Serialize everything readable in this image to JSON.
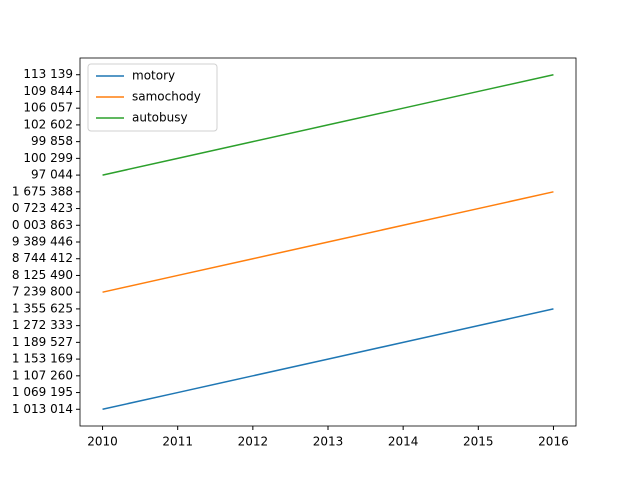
{
  "chart_data": {
    "type": "line",
    "x": [
      2010,
      2011,
      2012,
      2013,
      2014,
      2015,
      2016
    ],
    "xlim": [
      2009.7,
      2016.3
    ],
    "xticks": [
      2010,
      2011,
      2012,
      2013,
      2014,
      2015,
      2016
    ],
    "y_categories": [
      "1 013 014",
      "1 069 195",
      "1 107 260",
      "1 153 169",
      "1 189 527",
      "1 272 333",
      "1 355 625",
      "7 239 800",
      "8 125 490",
      "8 744 412",
      "9 389 446",
      "0 003 863",
      "0 723 423",
      "1 675 388",
      "97 044",
      "100 299",
      "99 858",
      "102 602",
      "106 057",
      "109 844",
      "113 139"
    ],
    "series": [
      {
        "name": "motory",
        "color": "#1f77b4",
        "values": [
          "1 013 014",
          "1 069 195",
          "1 107 260",
          "1 153 169",
          "1 189 527",
          "1 272 333",
          "1 355 625"
        ]
      },
      {
        "name": "samochody",
        "color": "#ff7f0e",
        "values": [
          "7 239 800",
          "8 125 490",
          "8 744 412",
          "9 389 446",
          "0 003 863",
          "0 723 423",
          "1 675 388"
        ]
      },
      {
        "name": "autobusy",
        "color": "#2ca02c",
        "values": [
          "97 044",
          "100 299",
          "99 858",
          "102 602",
          "106 057",
          "109 844",
          "113 139"
        ]
      }
    ],
    "legend": "upper left"
  }
}
